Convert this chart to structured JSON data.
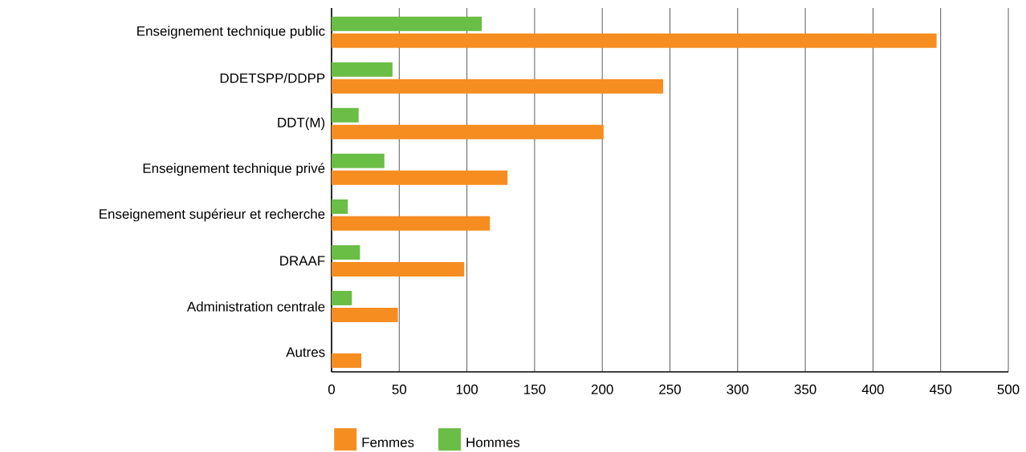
{
  "chart_data": {
    "type": "bar",
    "orientation": "horizontal",
    "categories": [
      "Enseignement technique public",
      "DDETSPP/DDPP",
      "DDT(M)",
      "Enseignement technique privé",
      "Enseignement supérieur et recherche",
      "DRAAF",
      "Administration centrale",
      "Autres"
    ],
    "series": [
      {
        "name": "Femmes",
        "color": "#f68d21",
        "values": [
          447,
          245,
          201,
          130,
          117,
          98,
          49,
          22
        ]
      },
      {
        "name": "Hommes",
        "color": "#6abd45",
        "values": [
          111,
          45,
          20,
          39,
          12,
          21,
          15,
          0
        ]
      }
    ],
    "xlim": [
      0,
      500
    ],
    "xticks": [
      0,
      50,
      100,
      150,
      200,
      250,
      300,
      350,
      400,
      450,
      500
    ],
    "grid": "x",
    "legend": "bottom left"
  }
}
